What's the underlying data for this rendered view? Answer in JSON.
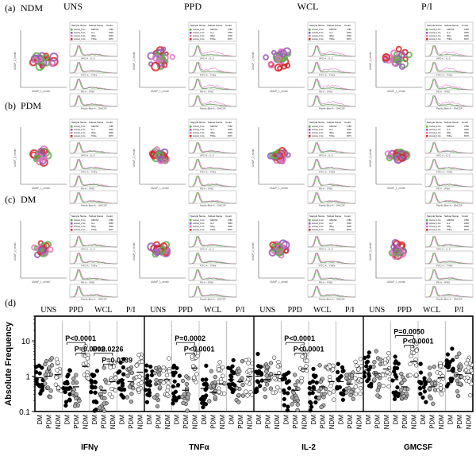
{
  "row_labels": [
    "(a)",
    "(b)",
    "(c)",
    "(d)"
  ],
  "cohort_labels": [
    "NDM",
    "PDM",
    "DM"
  ],
  "stim_labels": [
    "UNS",
    "PPD",
    "WCL",
    "P/I"
  ],
  "flow_panels": {
    "table_headers": [
      "Sample Name",
      "Subset Name",
      "Count"
    ],
    "table_rows": [
      [
        "concat_1.fcs",
        "GMCSF",
        "4780"
      ],
      [
        "concat_1.fcs",
        "IL-2",
        "3230"
      ],
      [
        "concat_1.fcs",
        "IFNg",
        "4500"
      ],
      [
        "concat_1.fcs",
        "TNFa",
        "6070"
      ]
    ],
    "histogram_axes": [
      "APC-A :: IL-2",
      "FITC-A :: TNFa",
      "PE-A :: IFNG",
      "Pacific Blue-A :: GMCSF"
    ],
    "umap_x_label": "UMAP_1_mimili",
    "umap_y_label": "UMAP_2_mimili",
    "colors": {
      "green": "#5db04b",
      "purple": "#9b59b6",
      "pink": "#e377c2",
      "red": "#d62728",
      "grey": "#999999"
    }
  },
  "chart_data": {
    "type": "scatter",
    "ylabel": "Absolute Frequency",
    "yscale": "log",
    "ylim": [
      0.1,
      50
    ],
    "yticks": [
      "0.1",
      "1",
      "10"
    ],
    "group_labels": [
      "UNS",
      "PPD",
      "WCL",
      "P/I"
    ],
    "within_group": [
      "DM",
      "PDM",
      "NDM"
    ],
    "marker_fill": {
      "DM": "#000000",
      "PDM": "#aaaaaa",
      "NDM": "#ffffff"
    },
    "panels": [
      {
        "name": "IFNγ",
        "medians": [
          [
            0.9,
            1.0,
            1.1
          ],
          [
            0.4,
            0.5,
            1.9
          ],
          [
            0.35,
            0.4,
            0.7
          ],
          [
            0.8,
            0.7,
            1.3
          ]
        ],
        "annotations": [
          {
            "text": "P<0.0001",
            "stim": 1,
            "from": 0,
            "to": 2,
            "y": 9
          },
          {
            "text": "P=0.0002",
            "stim": 1,
            "from": 1,
            "to": 2,
            "y": 4.5
          },
          {
            "text": "P=0.0226",
            "stim": 2,
            "from": 0,
            "to": 2,
            "y": 4.5
          },
          {
            "text": "P=0.0239",
            "stim": 2,
            "from": 1,
            "to": 2,
            "y": 2.2
          }
        ]
      },
      {
        "name": "TNFα",
        "medians": [
          [
            0.7,
            0.6,
            0.8
          ],
          [
            0.5,
            0.4,
            1.7
          ],
          [
            0.45,
            0.35,
            0.6
          ],
          [
            0.8,
            0.7,
            1.0
          ]
        ],
        "annotations": [
          {
            "text": "P=0.0002",
            "stim": 1,
            "from": 0,
            "to": 2,
            "y": 9
          },
          {
            "text": "P<0.0001",
            "stim": 1,
            "from": 1,
            "to": 2,
            "y": 4.5
          }
        ]
      },
      {
        "name": "IL-2",
        "medians": [
          [
            1.0,
            0.8,
            1.1
          ],
          [
            0.35,
            0.4,
            1.6
          ],
          [
            0.4,
            0.5,
            0.7
          ],
          [
            0.7,
            0.6,
            1.2
          ]
        ],
        "annotations": [
          {
            "text": "P<0.0001",
            "stim": 1,
            "from": 0,
            "to": 2,
            "y": 9
          },
          {
            "text": "P<0.0001",
            "stim": 1,
            "from": 1,
            "to": 2,
            "y": 4.5
          }
        ]
      },
      {
        "name": "GMCSF",
        "medians": [
          [
            1.5,
            1.2,
            1.6
          ],
          [
            0.8,
            0.5,
            2.6
          ],
          [
            0.6,
            0.5,
            0.9
          ],
          [
            1.4,
            1.1,
            1.2
          ]
        ],
        "annotations": [
          {
            "text": "P=0.0050",
            "stim": 1,
            "from": 0,
            "to": 2,
            "y": 14
          },
          {
            "text": "P<0.0001",
            "stim": 1,
            "from": 1,
            "to": 2,
            "y": 7.5
          }
        ]
      }
    ]
  }
}
